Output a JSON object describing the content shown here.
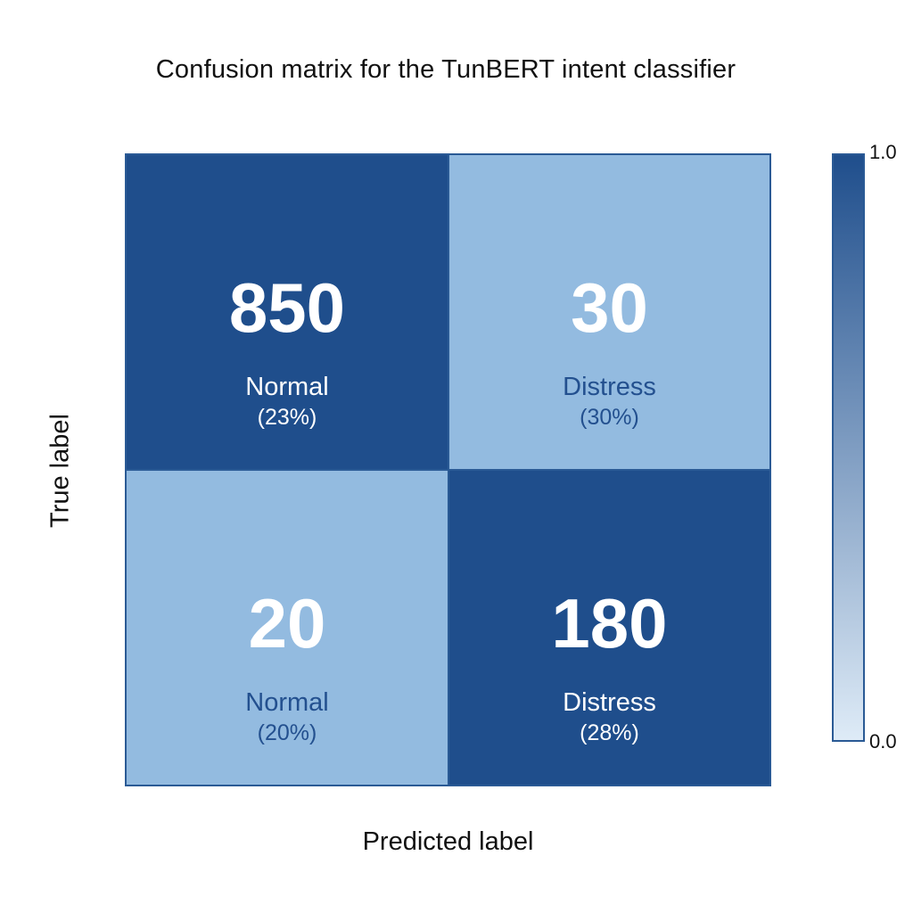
{
  "chart_data": {
    "type": "heatmap",
    "title": "Confusion matrix for the TunBERT intent classifier",
    "xlabel": "Predicted label",
    "ylabel": "True label",
    "cells": [
      {
        "row": 0,
        "col": 0,
        "count": "850",
        "label": "Normal",
        "percent": "(23%)",
        "intensity": 1.0
      },
      {
        "row": 0,
        "col": 1,
        "count": "30",
        "label": "Distress",
        "percent": "(30%)",
        "intensity": 0.35
      },
      {
        "row": 1,
        "col": 0,
        "count": "20",
        "label": "Normal",
        "percent": "(20%)",
        "intensity": 0.35
      },
      {
        "row": 1,
        "col": 1,
        "count": "180",
        "label": "Distress",
        "percent": "(28%)",
        "intensity": 1.0
      }
    ],
    "colorbar": {
      "min_label": "0.0",
      "max_label": "1.0",
      "color_low": "#deebf7",
      "color_high": "#1f4e8c"
    },
    "colors": {
      "dark": "#1f4e8c",
      "light": "#93bbe0"
    }
  }
}
